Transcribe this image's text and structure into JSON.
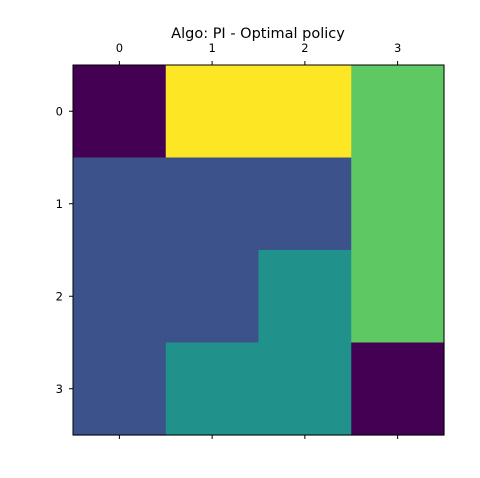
{
  "chart_data": {
    "type": "heatmap",
    "title": "Algo: PI - Optimal policy",
    "xlabel": "",
    "ylabel": "",
    "x_ticks": [
      "0",
      "1",
      "2",
      "3"
    ],
    "y_ticks": [
      "0",
      "1",
      "2",
      "3"
    ],
    "x_tick_position": "top-and-bottom-marks, labels-top",
    "colormap": "viridis",
    "value_range": [
      0,
      4
    ],
    "values": [
      [
        0,
        4,
        4,
        3
      ],
      [
        1,
        1,
        1,
        3
      ],
      [
        1,
        1,
        2,
        3
      ],
      [
        1,
        2,
        2,
        0
      ]
    ],
    "colors": {
      "0": "#440154",
      "1": "#3b528b",
      "2": "#21918c",
      "3": "#5ec962",
      "4": "#fde725"
    },
    "grid": false,
    "legend": "none"
  }
}
